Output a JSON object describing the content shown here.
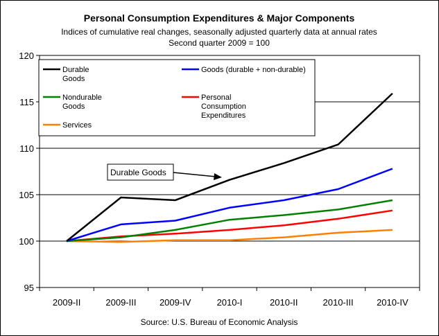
{
  "chart_data": {
    "type": "line",
    "title": "Personal Consumption Expenditures & Major Components",
    "subtitle": [
      "Indices of cumulative real changes, seasonally adjusted quarterly data at annual rates",
      "Second quarter 2009 = 100"
    ],
    "source": "Source: U.S. Bureau of Economic Analysis",
    "categories": [
      "2009-II",
      "2009-III",
      "2009-IV",
      "2010-I",
      "2010-II",
      "2010-III",
      "2010-IV"
    ],
    "ylim": [
      95,
      120
    ],
    "yticks": [
      95,
      100,
      105,
      110,
      115,
      120
    ],
    "grid": true,
    "legend_position": "top",
    "series": [
      {
        "name": [
          "Durable",
          "Goods"
        ],
        "color": "#000000",
        "values": [
          100.0,
          104.7,
          104.4,
          106.6,
          108.4,
          110.4,
          115.9
        ]
      },
      {
        "name": [
          "Goods (durable + non-durable)"
        ],
        "color": "#0000ff",
        "values": [
          100.0,
          101.8,
          102.2,
          103.6,
          104.4,
          105.6,
          107.8
        ]
      },
      {
        "name": [
          "Nondurable",
          " Goods"
        ],
        "color": "#008000",
        "values": [
          100.0,
          100.4,
          101.2,
          102.3,
          102.8,
          103.4,
          104.4
        ]
      },
      {
        "name": [
          "Personal",
          "Consumption",
          "Expenditures"
        ],
        "color": "#ff0000",
        "values": [
          100.0,
          100.5,
          100.8,
          101.2,
          101.7,
          102.4,
          103.3
        ]
      },
      {
        "name": [
          "Services"
        ],
        "color": "#ff8000",
        "values": [
          100.0,
          99.9,
          100.1,
          100.1,
          100.4,
          100.9,
          101.2
        ]
      }
    ],
    "annotation": {
      "text": "Durable Goods"
    }
  }
}
